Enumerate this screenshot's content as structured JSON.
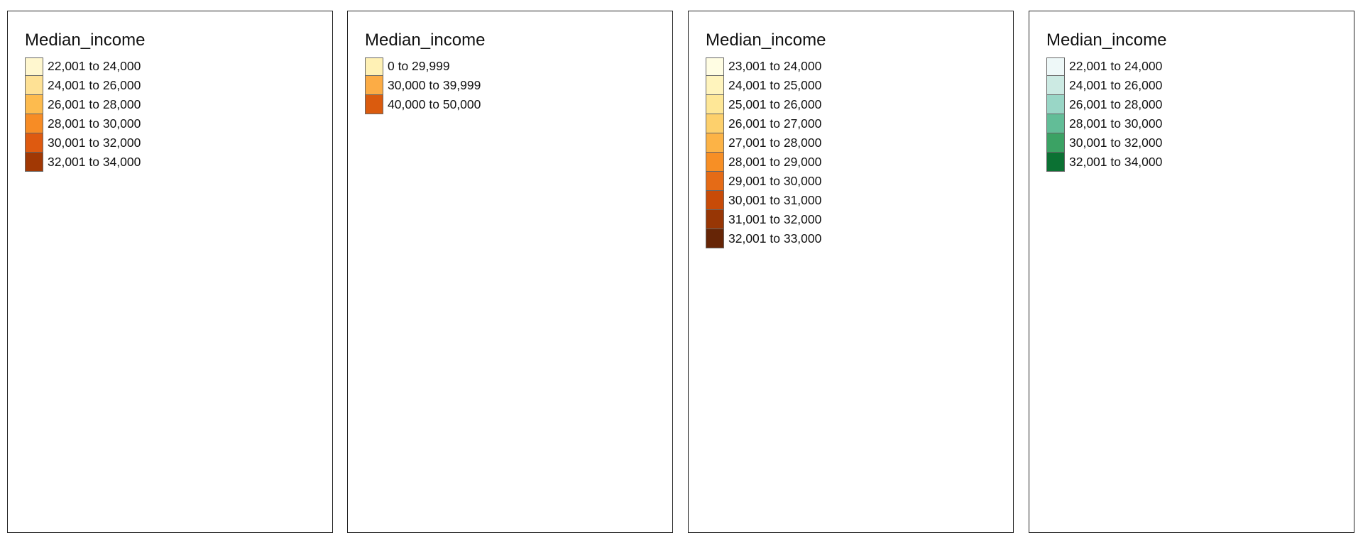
{
  "panels": [
    {
      "legend_title": "Median_income",
      "classes": [
        {
          "label": "22,001 to 24,000",
          "color": "#FFF7CF"
        },
        {
          "label": "24,001 to 26,000",
          "color": "#FEE195"
        },
        {
          "label": "26,001 to 28,000",
          "color": "#FDBB4E"
        },
        {
          "label": "28,001 to 30,000",
          "color": "#F78C25"
        },
        {
          "label": "30,001 to 32,000",
          "color": "#DE5A10"
        },
        {
          "label": "32,001 to 34,000",
          "color": "#A13804"
        }
      ]
    },
    {
      "legend_title": "Median_income",
      "classes": [
        {
          "label": "0 to 29,999",
          "color": "#FFF1B5"
        },
        {
          "label": "30,000 to 39,999",
          "color": "#FCAC45"
        },
        {
          "label": "40,000 to 50,000",
          "color": "#DA5B0E"
        }
      ]
    },
    {
      "legend_title": "Median_income",
      "classes": [
        {
          "label": "23,001 to 24,000",
          "color": "#FFFDE3"
        },
        {
          "label": "24,001 to 25,000",
          "color": "#FFF4BD"
        },
        {
          "label": "25,001 to 26,000",
          "color": "#FEE797"
        },
        {
          "label": "26,001 to 27,000",
          "color": "#FDD06C"
        },
        {
          "label": "27,001 to 28,000",
          "color": "#FCB346"
        },
        {
          "label": "28,001 to 29,000",
          "color": "#F78F25"
        },
        {
          "label": "29,001 to 30,000",
          "color": "#E56B16"
        },
        {
          "label": "30,001 to 31,000",
          "color": "#C84B08"
        },
        {
          "label": "31,001 to 32,000",
          "color": "#973605"
        },
        {
          "label": "32,001 to 33,000",
          "color": "#662506"
        }
      ]
    },
    {
      "legend_title": "Median_income",
      "classes": [
        {
          "label": "22,001 to 24,000",
          "color": "#EEF8F8"
        },
        {
          "label": "24,001 to 26,000",
          "color": "#CCEAE3"
        },
        {
          "label": "26,001 to 28,000",
          "color": "#99D6C6"
        },
        {
          "label": "28,001 to 30,000",
          "color": "#62BD97"
        },
        {
          "label": "30,001 to 32,000",
          "color": "#3BA264"
        },
        {
          "label": "32,001 to 34,000",
          "color": "#0B7133"
        }
      ]
    }
  ]
}
